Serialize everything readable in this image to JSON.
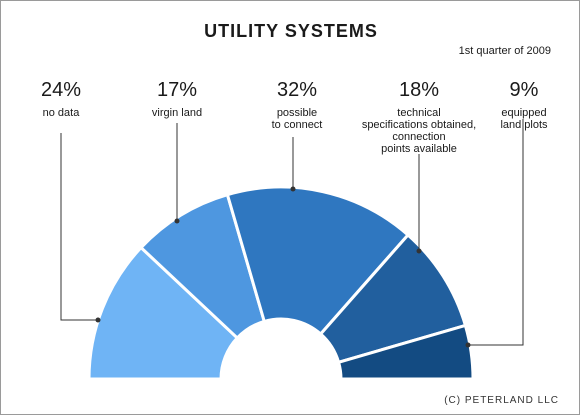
{
  "chart_data": {
    "type": "pie",
    "title": "UTILITY SYSTEMS",
    "subtitle": "1st quarter of 2009",
    "slices": [
      {
        "label": "no data",
        "value": 24,
        "value_text": "24%",
        "color": "#6fb4f5"
      },
      {
        "label": "virgin land",
        "value": 17,
        "value_text": "17%",
        "color": "#4e97e0"
      },
      {
        "label": "possible\nto connect",
        "value": 32,
        "value_text": "32%",
        "color": "#2f77c0"
      },
      {
        "label": "technical\nspecifications obtained,\nconnection\npoints available",
        "value": 18,
        "value_text": "18%",
        "color": "#215f9e"
      },
      {
        "label": "equipped\nland plots",
        "value": 9,
        "value_text": "9%",
        "color": "#134b82"
      }
    ],
    "legend": "none"
  },
  "footer": {
    "copyright": "(C) PETERLAND LLC"
  }
}
